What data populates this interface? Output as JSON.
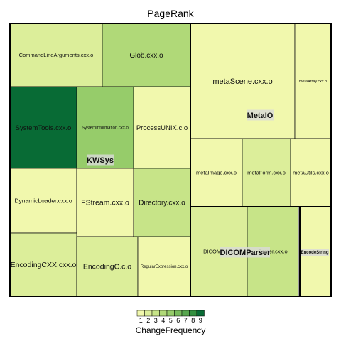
{
  "chart_data": {
    "type": "treemap",
    "title": "PageRank",
    "size_metric": "PageRank",
    "color_metric": "ChangeFrequency",
    "legend": {
      "title": "ChangeFrequency",
      "ticks": [
        "1",
        "2",
        "3",
        "4",
        "5",
        "6",
        "7",
        "8",
        "9"
      ],
      "colors": [
        "#f1f8ad",
        "#dcee9a",
        "#c7e488",
        "#b0d978",
        "#96cc6a",
        "#78bb5c",
        "#57a64e",
        "#33903f",
        "#086b35"
      ],
      "placement": "bottom"
    },
    "groups": [
      {
        "name": "KWSys",
        "items": [
          {
            "name": "CommandLineArguments.cxx.o",
            "change_frequency": 2
          },
          {
            "name": "Glob.cxx.o",
            "change_frequency": 4
          },
          {
            "name": "SystemTools.cxx.o",
            "change_frequency": 9
          },
          {
            "name": "SystemInformation.cxx.o",
            "change_frequency": 5
          },
          {
            "name": "ProcessUNIX.c.o",
            "change_frequency": 1
          },
          {
            "name": "DynamicLoader.cxx.o",
            "change_frequency": 1
          },
          {
            "name": "FStream.cxx.o",
            "change_frequency": 1
          },
          {
            "name": "Directory.cxx.o",
            "change_frequency": 3
          },
          {
            "name": "EncodingCXX.cxx.o",
            "change_frequency": 2
          },
          {
            "name": "EncodingC.c.o",
            "change_frequency": 2
          },
          {
            "name": "RegularExpression.cxx.o",
            "change_frequency": 1
          }
        ]
      },
      {
        "name": "MetaIO",
        "items": [
          {
            "name": "metaScene.cxx.o",
            "change_frequency": 1
          },
          {
            "name": "metaArray.cxx.o",
            "change_frequency": 1
          },
          {
            "name": "metaImage.cxx.o",
            "change_frequency": 1
          },
          {
            "name": "metaForm.cxx.o",
            "change_frequency": 2
          },
          {
            "name": "metaUtils.cxx.o",
            "change_frequency": 1
          }
        ]
      },
      {
        "name": "DICOMParser",
        "items": [
          {
            "name": "DICOMAppH",
            "change_frequency": 2
          },
          {
            "name": "Parser.cxx.o",
            "change_frequency": 3
          }
        ]
      },
      {
        "name": "EncodeString",
        "items": []
      }
    ]
  }
}
